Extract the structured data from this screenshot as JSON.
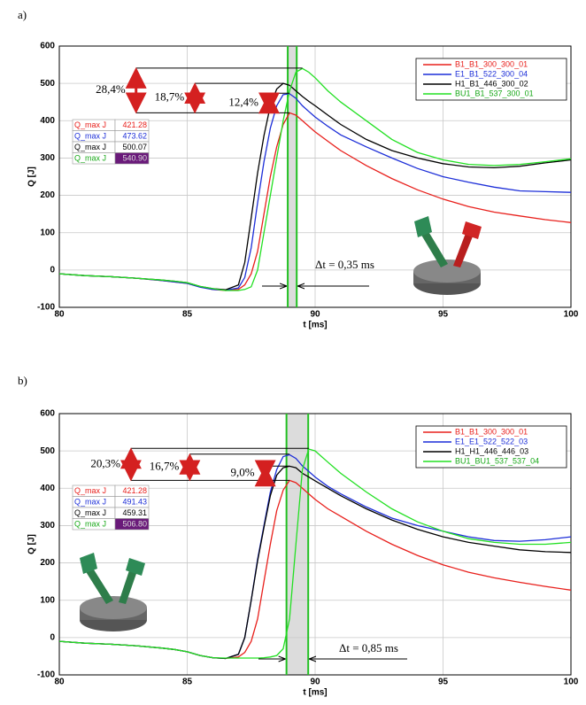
{
  "chart_data": [
    {
      "type": "line",
      "panel_label": "a)",
      "xlabel": "t [ms]",
      "ylabel": "Q [J]",
      "xlim": [
        80,
        100
      ],
      "xticks": [
        80,
        85,
        90,
        95,
        100
      ],
      "ylim": [
        -100,
        600
      ],
      "yticks": [
        -100,
        0,
        100,
        200,
        300,
        400,
        500,
        600
      ],
      "grid": true,
      "legend": "upper right",
      "x": [
        80,
        81,
        82,
        83,
        84,
        84.5,
        85,
        85.5,
        86,
        86.5,
        87,
        87.25,
        87.5,
        87.75,
        88,
        88.25,
        88.5,
        88.75,
        89,
        89.25,
        89.5,
        89.75,
        90,
        90.5,
        91,
        92,
        93,
        94,
        95,
        96,
        97,
        98,
        99,
        100
      ],
      "series": [
        {
          "name": "B1_B1_300_300_01",
          "color": "#e8201c",
          "values": [
            -10,
            -15,
            -18,
            -22,
            -28,
            -32,
            -36,
            -45,
            -52,
            -55,
            -52,
            -40,
            -10,
            50,
            150,
            250,
            330,
            390,
            421,
            415,
            400,
            385,
            370,
            345,
            320,
            280,
            245,
            215,
            190,
            170,
            155,
            145,
            135,
            127
          ]
        },
        {
          "name": "E1_B1_522_300_04",
          "color": "#1c2ed8",
          "values": [
            -10,
            -15,
            -18,
            -22,
            -28,
            -32,
            -36,
            -46,
            -52,
            -54,
            -48,
            -20,
            60,
            180,
            290,
            380,
            440,
            470,
            472,
            460,
            440,
            425,
            410,
            385,
            362,
            330,
            300,
            272,
            250,
            235,
            222,
            212,
            210,
            208
          ]
        },
        {
          "name": "H1_B1_446_300_02",
          "color": "#000000",
          "values": [
            -10,
            -15,
            -18,
            -22,
            -27,
            -30,
            -34,
            -44,
            -50,
            -53,
            -40,
            20,
            140,
            260,
            360,
            440,
            485,
            500,
            495,
            480,
            465,
            452,
            440,
            415,
            390,
            350,
            320,
            300,
            285,
            276,
            274,
            278,
            287,
            295
          ]
        },
        {
          "name": "BU1_B1_537_300_01",
          "color": "#22e022",
          "values": [
            -10,
            -15,
            -18,
            -22,
            -27,
            -30,
            -34,
            -44,
            -50,
            -55,
            -55,
            -52,
            -45,
            0,
            100,
            200,
            300,
            400,
            480,
            530,
            540,
            530,
            515,
            480,
            450,
            400,
            350,
            315,
            295,
            283,
            280,
            283,
            290,
            298
          ]
        }
      ],
      "peak_label": "Q_max  J",
      "peaks": [
        421.28,
        473.62,
        500.07,
        540.9
      ],
      "peak_labels": [
        "421.28",
        "473.62",
        "500.07",
        "540.90"
      ],
      "gain_labels": [
        "28,4%",
        "18,7%",
        "12,4%"
      ],
      "highlight_x": [
        88.93,
        89.28
      ],
      "dt_label": "Δt = 0,35 ms"
    },
    {
      "type": "line",
      "panel_label": "b)",
      "xlabel": "t [ms]",
      "ylabel": "Q [J]",
      "xlim": [
        80,
        100
      ],
      "xticks": [
        80,
        85,
        90,
        95,
        100
      ],
      "ylim": [
        -100,
        600
      ],
      "yticks": [
        -100,
        0,
        100,
        200,
        300,
        400,
        500,
        600
      ],
      "grid": true,
      "legend": "upper right",
      "x": [
        80,
        81,
        82,
        83,
        84,
        84.5,
        85,
        85.5,
        86,
        86.5,
        87,
        87.25,
        87.5,
        87.75,
        88,
        88.25,
        88.5,
        88.75,
        89,
        89.25,
        89.5,
        89.75,
        90,
        90.5,
        91,
        92,
        93,
        94,
        95,
        96,
        97,
        98,
        99,
        100
      ],
      "series": [
        {
          "name": "B1_B1_300_300_01",
          "color": "#e8201c",
          "values": [
            -10,
            -15,
            -18,
            -22,
            -28,
            -32,
            -38,
            -48,
            -54,
            -56,
            -52,
            -40,
            -10,
            50,
            150,
            250,
            340,
            395,
            421,
            415,
            400,
            385,
            370,
            345,
            325,
            285,
            250,
            220,
            195,
            175,
            160,
            148,
            137,
            127
          ]
        },
        {
          "name": "E1_E1_522_522_03",
          "color": "#1c2ed8",
          "values": [
            -10,
            -15,
            -18,
            -22,
            -28,
            -32,
            -38,
            -48,
            -54,
            -56,
            -45,
            0,
            100,
            210,
            300,
            390,
            450,
            485,
            490,
            480,
            460,
            445,
            430,
            405,
            385,
            350,
            320,
            300,
            285,
            270,
            260,
            258,
            262,
            270
          ]
        },
        {
          "name": "H1_H1_446_446_03",
          "color": "#000000",
          "values": [
            -10,
            -15,
            -18,
            -22,
            -28,
            -32,
            -38,
            -48,
            -54,
            -56,
            -45,
            0,
            100,
            205,
            295,
            380,
            435,
            455,
            459,
            455,
            440,
            430,
            420,
            400,
            380,
            345,
            315,
            290,
            270,
            255,
            245,
            235,
            230,
            228
          ]
        },
        {
          "name": "BU1_BU1_537_537_04",
          "color": "#22e022",
          "values": [
            -10,
            -15,
            -18,
            -22,
            -28,
            -32,
            -38,
            -48,
            -54,
            -55,
            -55,
            -55,
            -55,
            -55,
            -54,
            -52,
            -48,
            -30,
            50,
            250,
            450,
            505,
            500,
            470,
            440,
            390,
            345,
            310,
            285,
            265,
            255,
            250,
            250,
            255
          ]
        }
      ],
      "peak_label": "Q_max  J",
      "peaks": [
        421.28,
        491.43,
        459.31,
        506.8
      ],
      "peak_labels": [
        "421.28",
        "491.43",
        "459.31",
        "506.80"
      ],
      "gain_labels": [
        "20,3%",
        "16,7%",
        "9,0%"
      ],
      "highlight_x": [
        88.88,
        89.73
      ],
      "dt_label": "Δt = 0,85 ms"
    }
  ]
}
